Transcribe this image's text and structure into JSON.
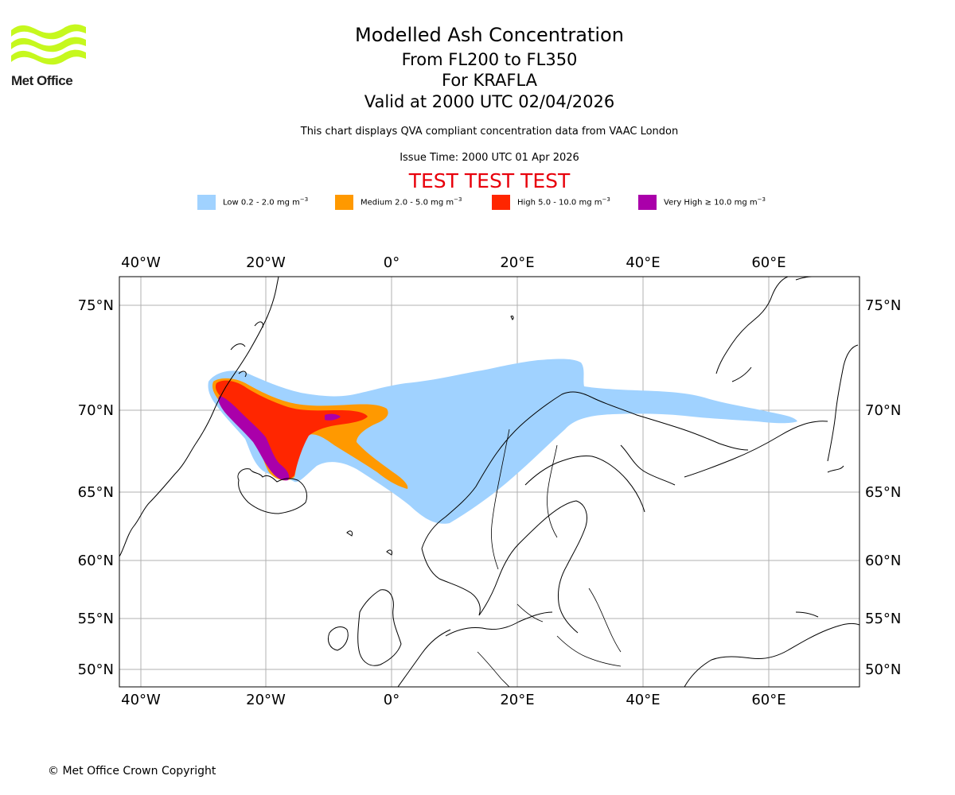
{
  "logo": {
    "name": "Met Office",
    "color": "#c6f81e"
  },
  "titles": {
    "main": "Modelled Ash Concentration",
    "levels": "From FL200 to FL350",
    "volcano": "For KRAFLA",
    "valid": "Valid at 2000 UTC 02/04/2026",
    "description": "This chart displays QVA compliant concentration data from VAAC London",
    "issue": "Issue Time: 2000 UTC 01 Apr 2026",
    "test_banner": "TEST TEST TEST"
  },
  "legend": [
    {
      "label": "Low 0.2 - 2.0 mg m",
      "unit_exp": "−3",
      "color": "#a0d2ff"
    },
    {
      "label": "Medium 2.0 - 5.0 mg m",
      "unit_exp": "−3",
      "color": "#ff9900"
    },
    {
      "label": "High 5.0 - 10.0 mg m",
      "unit_exp": "−3",
      "color": "#ff2600"
    },
    {
      "label": "Very High ≥ 10.0 mg m",
      "unit_exp": "−3",
      "color": "#aa00aa"
    }
  ],
  "map": {
    "lon_labels": [
      "40°W",
      "20°W",
      "0°",
      "20°E",
      "40°E",
      "60°E"
    ],
    "lat_labels": [
      "75°N",
      "70°N",
      "65°N",
      "60°N",
      "55°N",
      "50°N"
    ],
    "grid": true,
    "projection": "polar-stereographic"
  },
  "copyright": "© Met Office Crown Copyright"
}
